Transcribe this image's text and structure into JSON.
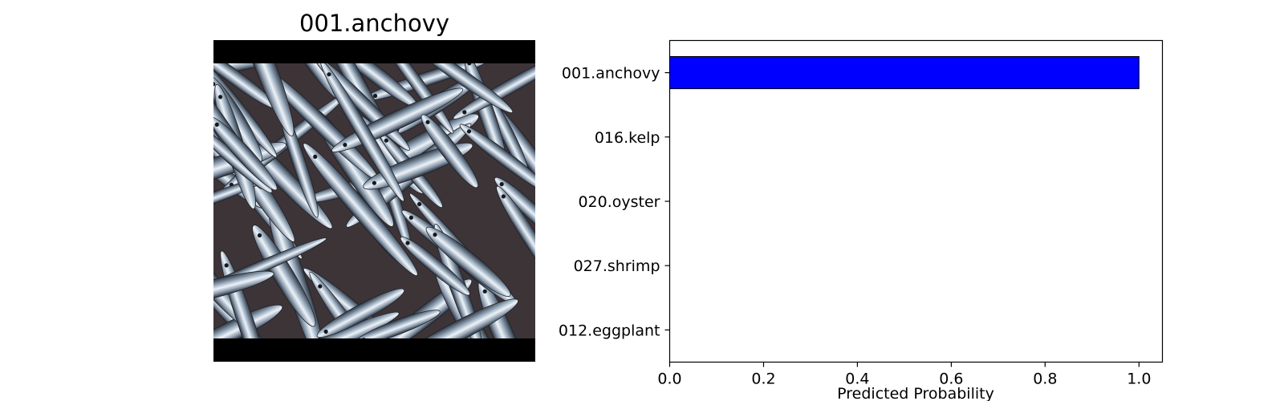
{
  "image_panel": {
    "title": "001.anchovy",
    "photo": "anchovy-fish-photo"
  },
  "chart_data": {
    "type": "bar",
    "orientation": "horizontal",
    "categories": [
      "001.anchovy",
      "016.kelp",
      "020.oyster",
      "027.shrimp",
      "012.eggplant"
    ],
    "values": [
      1.0,
      0.0,
      0.0,
      0.0,
      0.0
    ],
    "xlabel": "Predicted Probability",
    "ylabel": "",
    "xlim": [
      0.0,
      1.05
    ],
    "xticks": [
      "0.0",
      "0.2",
      "0.4",
      "0.6",
      "0.8",
      "1.0"
    ],
    "bar_color": "#0000ff",
    "grid": false,
    "legend": "none"
  }
}
